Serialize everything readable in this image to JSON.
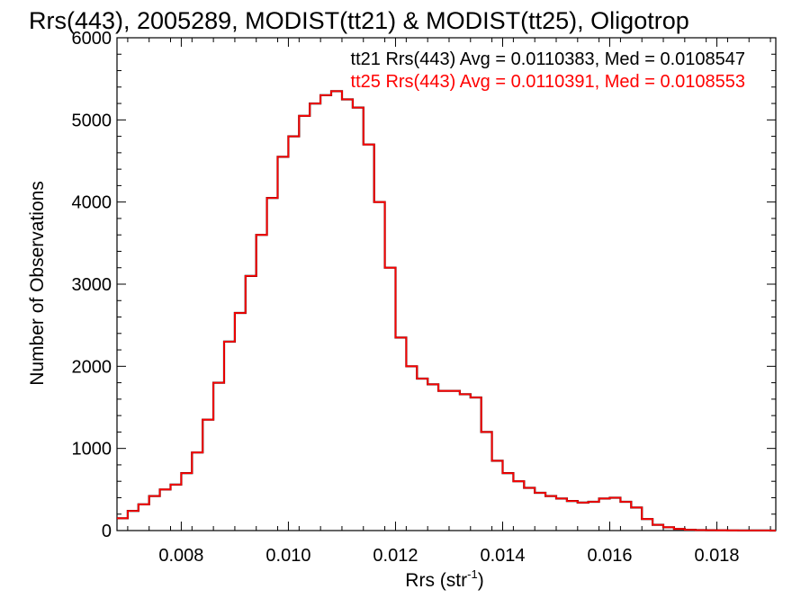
{
  "chart_data": {
    "type": "line",
    "step": true,
    "title": "Rrs(443), 2005289, MODIST(tt21) & MODIST(tt25), Oligotrop",
    "xlabel": "Rrs (str",
    "xlabel_sup": "-1",
    "xlabel_suffix": ")",
    "ylabel": "Number of Observations",
    "xlim": [
      0.0068,
      0.0191
    ],
    "ylim": [
      0,
      6000
    ],
    "x_ticks": [
      0.008,
      0.01,
      0.012,
      0.014,
      0.016,
      0.018
    ],
    "x_tick_labels": [
      "0.008",
      "0.010",
      "0.012",
      "0.014",
      "0.016",
      "0.018"
    ],
    "y_ticks": [
      0,
      1000,
      2000,
      3000,
      4000,
      5000,
      6000
    ],
    "y_tick_labels": [
      "0",
      "1000",
      "2000",
      "3000",
      "4000",
      "5000",
      "6000"
    ],
    "legend_position": "top-right",
    "grid": false,
    "series": [
      {
        "name": "tt21 Rrs(443) Avg = 0.0110383, Med = 0.0108547",
        "color": "#000000",
        "x": [
          0.0068,
          0.007,
          0.0072,
          0.0074,
          0.0076,
          0.0078,
          0.008,
          0.0082,
          0.0084,
          0.0086,
          0.0088,
          0.009,
          0.0092,
          0.0094,
          0.0096,
          0.0098,
          0.01,
          0.0102,
          0.0104,
          0.0106,
          0.0108,
          0.011,
          0.0112,
          0.0114,
          0.0116,
          0.0118,
          0.012,
          0.0122,
          0.0124,
          0.0126,
          0.0128,
          0.013,
          0.0132,
          0.0134,
          0.0136,
          0.0138,
          0.014,
          0.0142,
          0.0144,
          0.0146,
          0.0148,
          0.015,
          0.0152,
          0.0154,
          0.0156,
          0.0158,
          0.016,
          0.0162,
          0.0164,
          0.0166,
          0.0168,
          0.017,
          0.0172,
          0.0174,
          0.0176,
          0.0178,
          0.018,
          0.0182,
          0.0184,
          0.0186,
          0.0188,
          0.019
        ],
        "y": [
          150,
          240,
          320,
          420,
          500,
          560,
          700,
          950,
          1350,
          1800,
          2300,
          2650,
          3100,
          3600,
          4050,
          4550,
          4800,
          5050,
          5200,
          5300,
          5350,
          5250,
          5150,
          4700,
          4000,
          3200,
          2350,
          2000,
          1850,
          1780,
          1700,
          1700,
          1660,
          1620,
          1200,
          850,
          700,
          600,
          520,
          460,
          420,
          390,
          360,
          340,
          350,
          390,
          400,
          350,
          280,
          140,
          70,
          40,
          20,
          10,
          6,
          4,
          3,
          2,
          1,
          1,
          1,
          0
        ]
      },
      {
        "name": "tt25 Rrs(443) Avg = 0.0110391, Med = 0.0108553",
        "color": "#ff0000",
        "x": [
          0.0068,
          0.007,
          0.0072,
          0.0074,
          0.0076,
          0.0078,
          0.008,
          0.0082,
          0.0084,
          0.0086,
          0.0088,
          0.009,
          0.0092,
          0.0094,
          0.0096,
          0.0098,
          0.01,
          0.0102,
          0.0104,
          0.0106,
          0.0108,
          0.011,
          0.0112,
          0.0114,
          0.0116,
          0.0118,
          0.012,
          0.0122,
          0.0124,
          0.0126,
          0.0128,
          0.013,
          0.0132,
          0.0134,
          0.0136,
          0.0138,
          0.014,
          0.0142,
          0.0144,
          0.0146,
          0.0148,
          0.015,
          0.0152,
          0.0154,
          0.0156,
          0.0158,
          0.016,
          0.0162,
          0.0164,
          0.0166,
          0.0168,
          0.017,
          0.0172,
          0.0174,
          0.0176,
          0.0178,
          0.018,
          0.0182,
          0.0184,
          0.0186,
          0.0188,
          0.019
        ],
        "y": [
          150,
          240,
          320,
          420,
          500,
          560,
          700,
          950,
          1350,
          1800,
          2300,
          2650,
          3100,
          3600,
          4050,
          4550,
          4800,
          5050,
          5200,
          5300,
          5350,
          5250,
          5150,
          4700,
          4000,
          3200,
          2350,
          2000,
          1850,
          1780,
          1700,
          1700,
          1660,
          1620,
          1200,
          850,
          700,
          600,
          520,
          460,
          420,
          390,
          360,
          340,
          350,
          390,
          400,
          350,
          280,
          140,
          70,
          40,
          20,
          10,
          6,
          4,
          3,
          2,
          1,
          1,
          1,
          0
        ]
      }
    ]
  }
}
